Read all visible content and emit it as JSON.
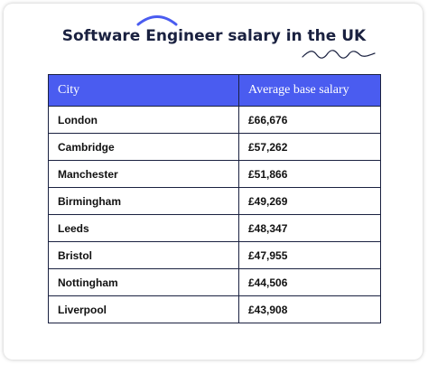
{
  "title": "Software Engineer salary in the UK",
  "colors": {
    "header_bg": "#4a5cf0",
    "title_text": "#1a2140",
    "arc_decoration": "#4a5cf0",
    "squiggle_decoration": "#1a2140"
  },
  "table": {
    "headers": [
      "City",
      "Average base salary"
    ],
    "rows": [
      {
        "city": "London",
        "salary": "£66,676"
      },
      {
        "city": "Cambridge",
        "salary": "£57,262"
      },
      {
        "city": "Manchester",
        "salary": "£51,866"
      },
      {
        "city": "Birmingham",
        "salary": "£49,269"
      },
      {
        "city": "Leeds",
        "salary": "£48,347"
      },
      {
        "city": "Bristol",
        "salary": "£47,955"
      },
      {
        "city": "Nottingham",
        "salary": "£44,506"
      },
      {
        "city": "Liverpool",
        "salary": "£43,908"
      }
    ]
  }
}
